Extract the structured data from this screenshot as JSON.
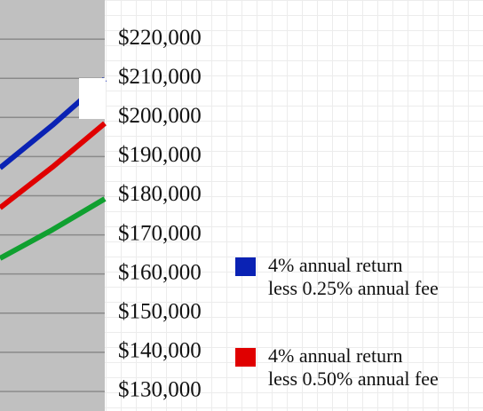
{
  "chart_data": {
    "type": "line",
    "categories": [
      null,
      null,
      null
    ],
    "series": [
      {
        "name": "4% annual return\nless 0.25% annual fee",
        "color": "#0a22b4",
        "values": [
          187100,
          198000,
          209800
        ]
      },
      {
        "name": "4% annual return\nless 0.50% annual fee",
        "color": "#e00000",
        "values": [
          176900,
          187300,
          198500
        ]
      },
      {
        "color": "#10a030",
        "values": [
          164000,
          171300,
          179200
        ]
      }
    ],
    "ylim": [
      125000,
      230000
    ],
    "yticks": [
      {
        "value": 220000,
        "label": "$220,000"
      },
      {
        "value": 210000,
        "label": "$210,000"
      },
      {
        "value": 200000,
        "label": "$200,000"
      },
      {
        "value": 190000,
        "label": "$190,000"
      },
      {
        "value": 180000,
        "label": "$180,000"
      },
      {
        "value": 170000,
        "label": "$170,000"
      },
      {
        "value": 160000,
        "label": "$160,000"
      },
      {
        "value": 150000,
        "label": "$150,000"
      },
      {
        "value": 140000,
        "label": "$140,000"
      },
      {
        "value": 130000,
        "label": "$130,000"
      }
    ],
    "grid": true
  }
}
